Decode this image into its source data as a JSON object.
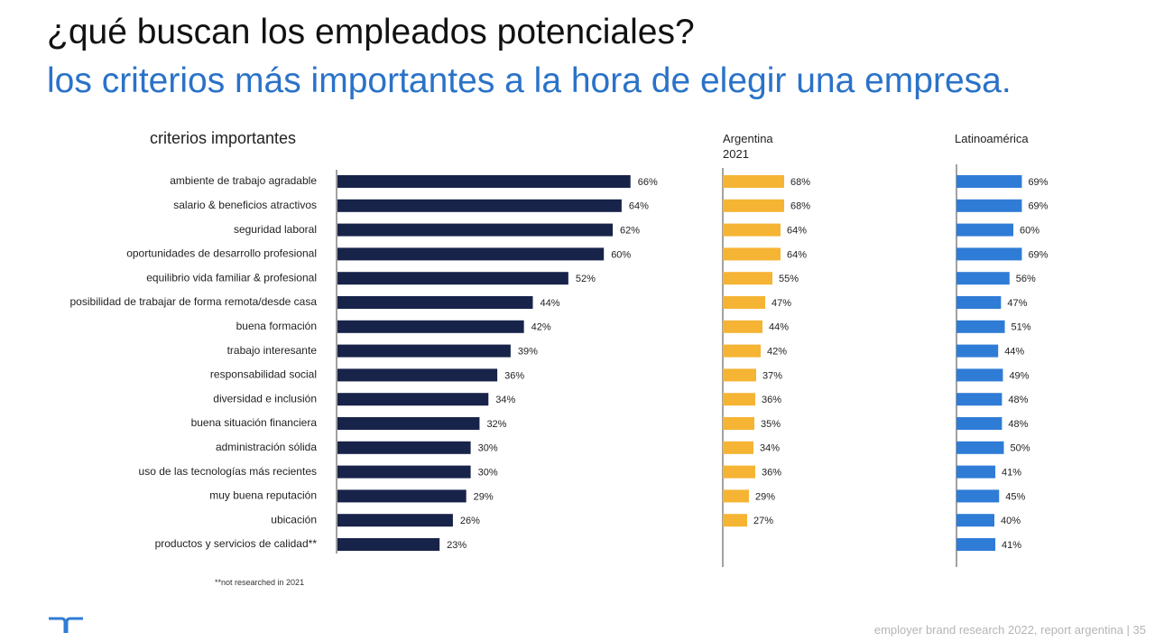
{
  "title": "¿qué buscan los empleados potenciales?",
  "subtitle": "los criterios más importantes a la hora de elegir una empresa.",
  "section_label": "criterios importantes",
  "footnote": "**not researched in 2021",
  "footer": "employer brand research 2022, report argentina  |  35",
  "colors": {
    "main": "#18234a",
    "argentina_2021": "#f5b434",
    "latinoamerica": "#2f7cd6"
  },
  "chart_data": {
    "type": "bar",
    "orientation": "horizontal",
    "categories": [
      "ambiente de trabajo agradable",
      "salario & beneficios atractivos",
      "seguridad laboral",
      "oportunidades de desarrollo profesional",
      "equilibrio vida familiar & profesional",
      "posibilidad de trabajar de forma remota/desde casa",
      "buena formación",
      "trabajo interesante",
      "responsabilidad social",
      "diversidad e inclusión",
      "buena situación financiera",
      "administración sólida",
      "uso de las tecnologías más recientes",
      "muy buena reputación",
      "ubicación",
      "productos y servicios de calidad**"
    ],
    "series": [
      {
        "values": [
          66,
          64,
          62,
          60,
          52,
          44,
          42,
          39,
          36,
          34,
          32,
          30,
          30,
          29,
          26,
          23
        ]
      },
      {
        "name": "Argentina 2021",
        "values": [
          68,
          68,
          64,
          64,
          55,
          47,
          44,
          42,
          37,
          36,
          35,
          34,
          36,
          29,
          27,
          null
        ]
      },
      {
        "name": "Latinoamérica",
        "values": [
          69,
          69,
          60,
          69,
          56,
          47,
          51,
          44,
          49,
          48,
          48,
          50,
          41,
          45,
          40,
          41
        ]
      }
    ],
    "value_suffix": "%"
  }
}
